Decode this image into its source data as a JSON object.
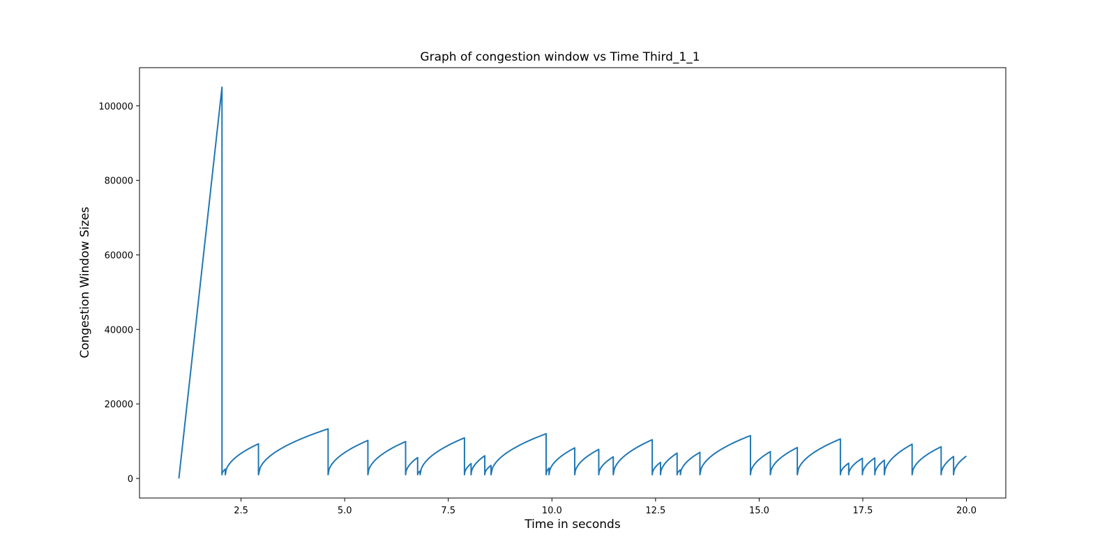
{
  "chart_data": {
    "type": "line",
    "title": "Graph of congestion window vs Time Third_1_1",
    "xlabel": "Time in seconds",
    "ylabel": "Congestion Window Sizes",
    "xlim": [
      0.05,
      20.95
    ],
    "ylim": [
      -5250,
      110250
    ],
    "grid": false,
    "x_ticks": [
      2.5,
      5.0,
      7.5,
      10.0,
      12.5,
      15.0,
      17.5,
      20.0
    ],
    "x_tick_labels": [
      "2.5",
      "5.0",
      "7.5",
      "10.0",
      "12.5",
      "15.0",
      "17.5",
      "20.0"
    ],
    "y_ticks": [
      0,
      20000,
      40000,
      60000,
      80000,
      100000
    ],
    "y_tick_labels": [
      "0",
      "20000",
      "40000",
      "60000",
      "80000",
      "100000"
    ],
    "line_color": "#1f77b4",
    "series": [
      {
        "name": "",
        "segments": [
          {
            "x0": 1.0,
            "x1": 2.04,
            "y_start": 0,
            "y_end": 105000,
            "shape": "linear"
          },
          {
            "x0": 2.04,
            "x1": 2.12,
            "y_start": 1000,
            "y_end": 2500,
            "shape": "concave"
          },
          {
            "x0": 2.12,
            "x1": 2.92,
            "y_start": 1000,
            "y_end": 9300,
            "shape": "concave"
          },
          {
            "x0": 2.92,
            "x1": 4.6,
            "y_start": 1000,
            "y_end": 13300,
            "shape": "concave"
          },
          {
            "x0": 4.6,
            "x1": 5.56,
            "y_start": 1000,
            "y_end": 10200,
            "shape": "concave"
          },
          {
            "x0": 5.56,
            "x1": 6.47,
            "y_start": 1000,
            "y_end": 9900,
            "shape": "concave"
          },
          {
            "x0": 6.47,
            "x1": 6.76,
            "y_start": 1000,
            "y_end": 5600,
            "shape": "concave"
          },
          {
            "x0": 6.76,
            "x1": 6.82,
            "y_start": 1000,
            "y_end": 2000,
            "shape": "concave"
          },
          {
            "x0": 6.82,
            "x1": 7.89,
            "y_start": 1000,
            "y_end": 10900,
            "shape": "concave"
          },
          {
            "x0": 7.89,
            "x1": 8.05,
            "y_start": 1000,
            "y_end": 4000,
            "shape": "concave"
          },
          {
            "x0": 8.05,
            "x1": 8.38,
            "y_start": 1000,
            "y_end": 6100,
            "shape": "concave"
          },
          {
            "x0": 8.38,
            "x1": 8.53,
            "y_start": 1000,
            "y_end": 3500,
            "shape": "concave"
          },
          {
            "x0": 8.53,
            "x1": 9.86,
            "y_start": 1000,
            "y_end": 12000,
            "shape": "concave"
          },
          {
            "x0": 9.86,
            "x1": 9.93,
            "y_start": 1000,
            "y_end": 2800,
            "shape": "concave"
          },
          {
            "x0": 9.93,
            "x1": 10.55,
            "y_start": 1000,
            "y_end": 8200,
            "shape": "concave"
          },
          {
            "x0": 10.55,
            "x1": 11.13,
            "y_start": 1000,
            "y_end": 7800,
            "shape": "concave"
          },
          {
            "x0": 11.13,
            "x1": 11.48,
            "y_start": 1000,
            "y_end": 5800,
            "shape": "concave"
          },
          {
            "x0": 11.48,
            "x1": 12.42,
            "y_start": 1000,
            "y_end": 10400,
            "shape": "concave"
          },
          {
            "x0": 12.42,
            "x1": 12.62,
            "y_start": 1000,
            "y_end": 4300,
            "shape": "concave"
          },
          {
            "x0": 12.62,
            "x1": 13.02,
            "y_start": 1000,
            "y_end": 6800,
            "shape": "concave"
          },
          {
            "x0": 13.02,
            "x1": 13.1,
            "y_start": 1000,
            "y_end": 2300,
            "shape": "concave"
          },
          {
            "x0": 13.1,
            "x1": 13.57,
            "y_start": 1000,
            "y_end": 7000,
            "shape": "concave"
          },
          {
            "x0": 13.57,
            "x1": 14.79,
            "y_start": 1000,
            "y_end": 11500,
            "shape": "concave"
          },
          {
            "x0": 14.79,
            "x1": 15.27,
            "y_start": 1000,
            "y_end": 7200,
            "shape": "concave"
          },
          {
            "x0": 15.27,
            "x1": 15.92,
            "y_start": 1000,
            "y_end": 8300,
            "shape": "concave"
          },
          {
            "x0": 15.92,
            "x1": 16.96,
            "y_start": 1000,
            "y_end": 10600,
            "shape": "concave"
          },
          {
            "x0": 16.96,
            "x1": 17.16,
            "y_start": 1000,
            "y_end": 4100,
            "shape": "concave"
          },
          {
            "x0": 17.16,
            "x1": 17.49,
            "y_start": 1000,
            "y_end": 5400,
            "shape": "concave"
          },
          {
            "x0": 17.49,
            "x1": 17.79,
            "y_start": 1000,
            "y_end": 5500,
            "shape": "concave"
          },
          {
            "x0": 17.79,
            "x1": 18.02,
            "y_start": 1000,
            "y_end": 4900,
            "shape": "concave"
          },
          {
            "x0": 18.02,
            "x1": 18.69,
            "y_start": 1000,
            "y_end": 9200,
            "shape": "concave"
          },
          {
            "x0": 18.69,
            "x1": 19.39,
            "y_start": 1000,
            "y_end": 8500,
            "shape": "concave"
          },
          {
            "x0": 19.39,
            "x1": 19.69,
            "y_start": 1000,
            "y_end": 5900,
            "shape": "concave"
          },
          {
            "x0": 19.69,
            "x1": 20.0,
            "y_start": 1000,
            "y_end": 6000,
            "shape": "concave"
          }
        ]
      }
    ]
  }
}
